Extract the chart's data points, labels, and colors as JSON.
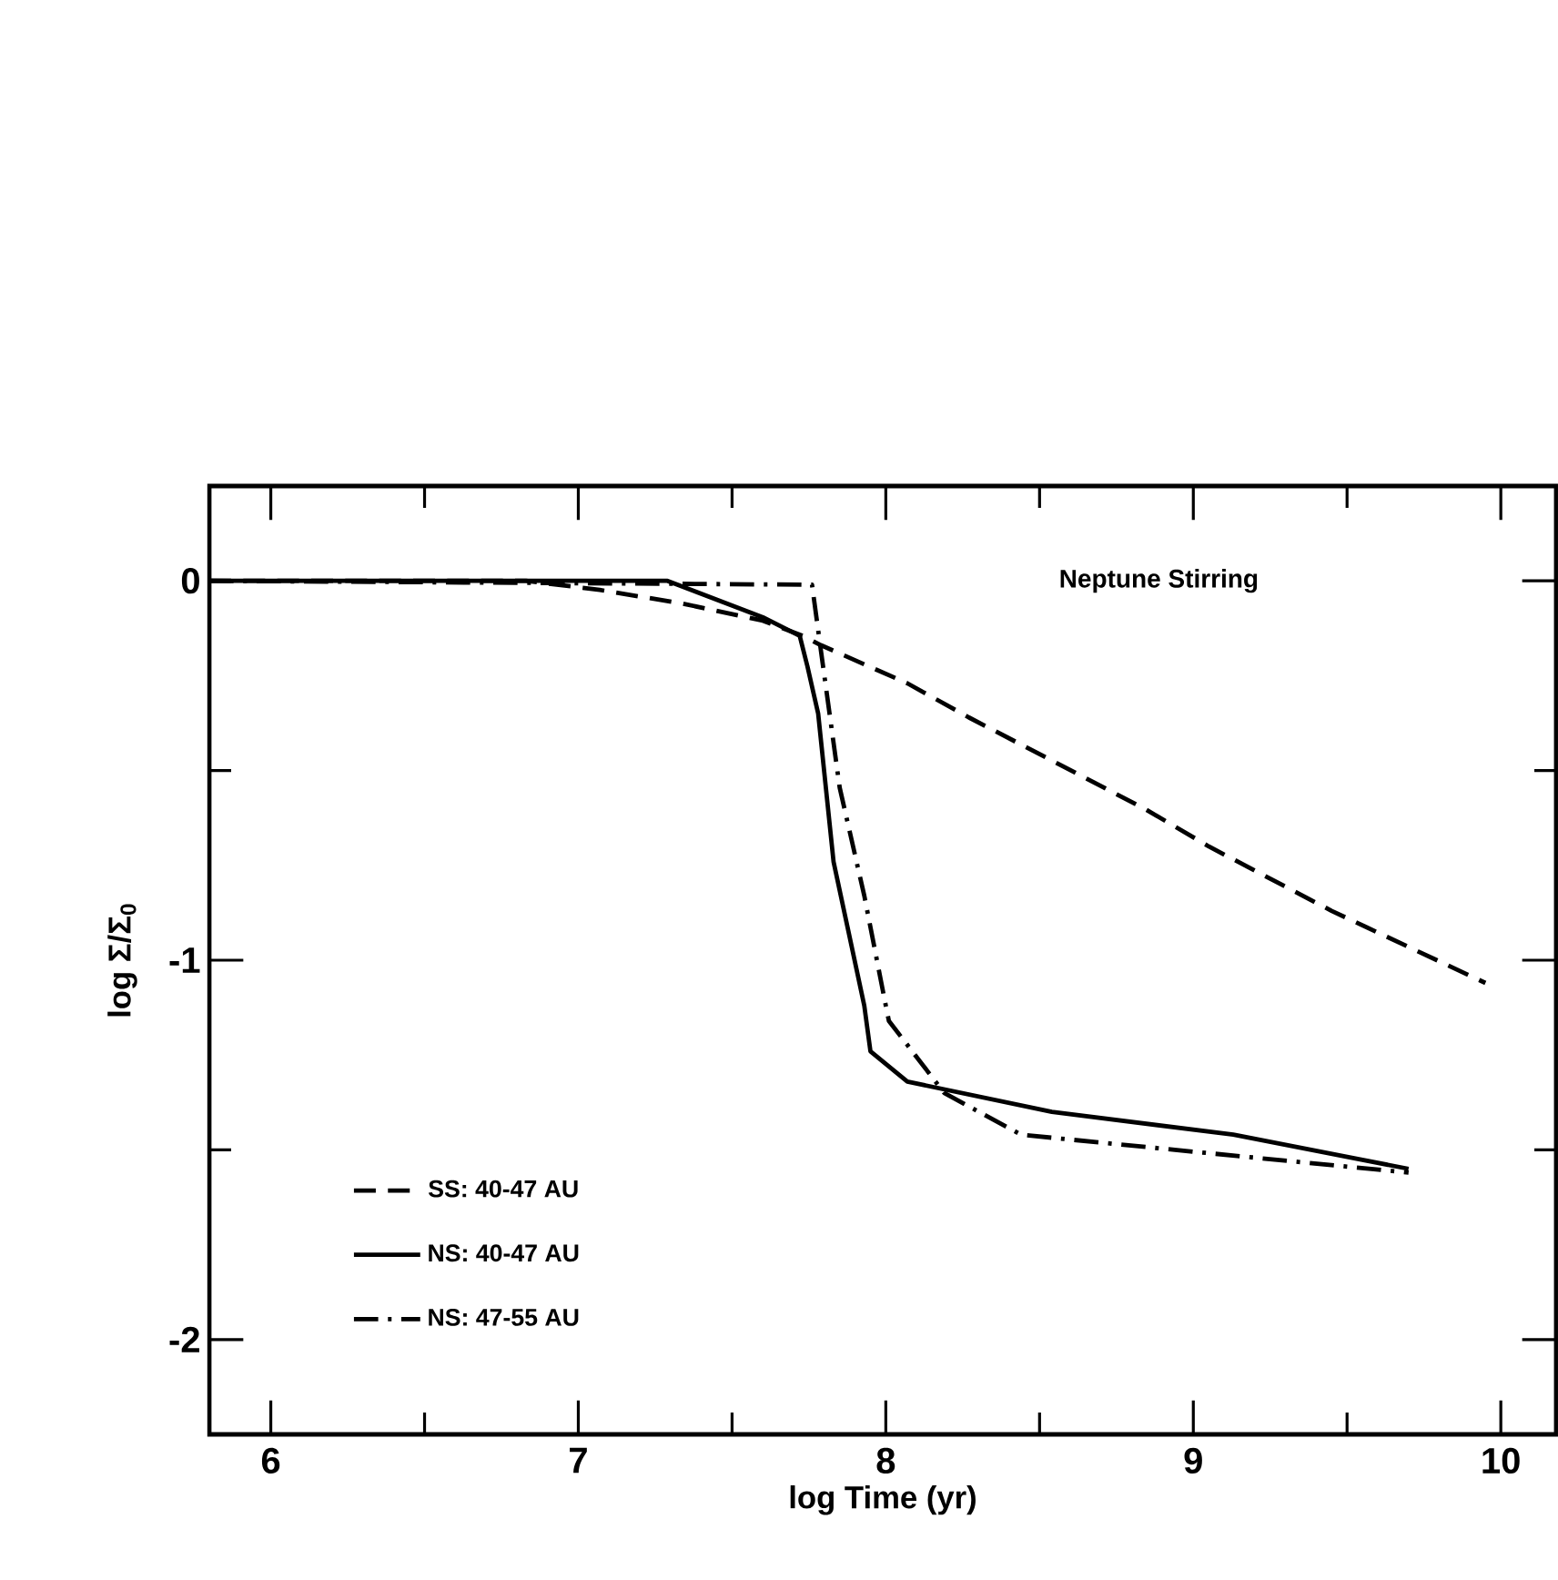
{
  "chart_data": {
    "type": "line",
    "xlabel": "log Time (yr)",
    "ylabel": "log Σ/Σ$_{0}$",
    "annotations": [
      "Neptune Stirring"
    ],
    "xlim": [
      5.8,
      10.18
    ],
    "ylim": [
      -2.25,
      0.25
    ],
    "xticks": [
      6,
      {
        "value": 6.5,
        "label": null
      },
      7,
      {
        "value": 7.5,
        "label": null
      },
      8,
      {
        "value": 8.5,
        "label": null
      },
      9,
      {
        "value": 9.5,
        "label": null
      },
      10
    ],
    "yticks": [
      -2,
      {
        "value": -1.5,
        "label": null
      },
      -1,
      {
        "value": -0.5,
        "label": null
      },
      0
    ],
    "legend": "bottom left",
    "series": [
      {
        "name": "SS: 40-47 AU",
        "color": "#000000",
        "line_style": "dashed",
        "x": [
          5.8,
          6.83,
          7.07,
          7.34,
          7.6,
          7.73,
          7.79,
          8.07,
          8.27,
          8.84,
          9.05,
          9.45,
          9.95
        ],
        "values": [
          0,
          0,
          -0.024,
          -0.06,
          -0.105,
          -0.145,
          -0.17,
          -0.27,
          -0.36,
          -0.6,
          -0.7,
          -0.87,
          -1.06
        ]
      },
      {
        "name": "NS: 40-47 AU",
        "color": "#000000",
        "line_style": "solid",
        "x": [
          5.8,
          7.29,
          7.6,
          7.72,
          7.745,
          7.78,
          7.83,
          7.93,
          7.95,
          8.07,
          8.54,
          9.13,
          9.7
        ],
        "values": [
          0,
          0,
          -0.096,
          -0.145,
          -0.225,
          -0.35,
          -0.74,
          -1.12,
          -1.24,
          -1.32,
          -1.4,
          -1.46,
          -1.55
        ]
      },
      {
        "name": "NS: 47-55 AU",
        "color": "#000000",
        "line_style": "dashdot",
        "x": [
          5.8,
          7.73,
          7.76,
          7.79,
          7.85,
          7.93,
          8.0,
          8.01,
          8.19,
          8.44,
          8.94,
          9.7
        ],
        "values": [
          0,
          -0.01,
          -0.01,
          -0.19,
          -0.545,
          -0.83,
          -1.12,
          -1.16,
          -1.35,
          -1.46,
          -1.5,
          -1.56
        ]
      }
    ]
  }
}
